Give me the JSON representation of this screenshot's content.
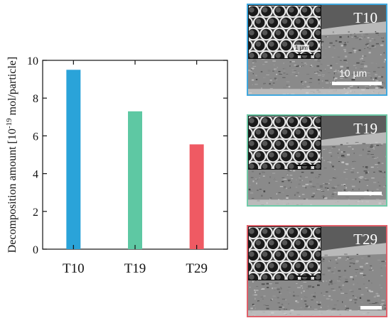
{
  "chart_data": {
    "type": "bar",
    "categories": [
      "T10",
      "T19",
      "T29"
    ],
    "values": [
      9.5,
      7.3,
      5.55
    ],
    "colors": [
      "#2aa3d9",
      "#5ec8a3",
      "#ef5a63"
    ],
    "ylabel": "Decomposition amount [10-19 mol/particle]",
    "ylabel_parts": {
      "pre": "Decomposition amount [10",
      "sup": "-19",
      "post": " mol/particle]"
    },
    "ylim": [
      0,
      10
    ],
    "yticks": [
      "0",
      "2",
      "4",
      "6",
      "8",
      "10"
    ],
    "grid": false
  },
  "panels": [
    {
      "label": "T10",
      "border_color": "#3fa7dd",
      "scale_text": "10 µm",
      "inset_scale_text": "1 µm"
    },
    {
      "label": "T19",
      "border_color": "#6fcaa8",
      "scale_text": "",
      "inset_scale_text": ""
    },
    {
      "label": "T29",
      "border_color": "#e0606a",
      "scale_text": "",
      "inset_scale_text": ""
    }
  ]
}
